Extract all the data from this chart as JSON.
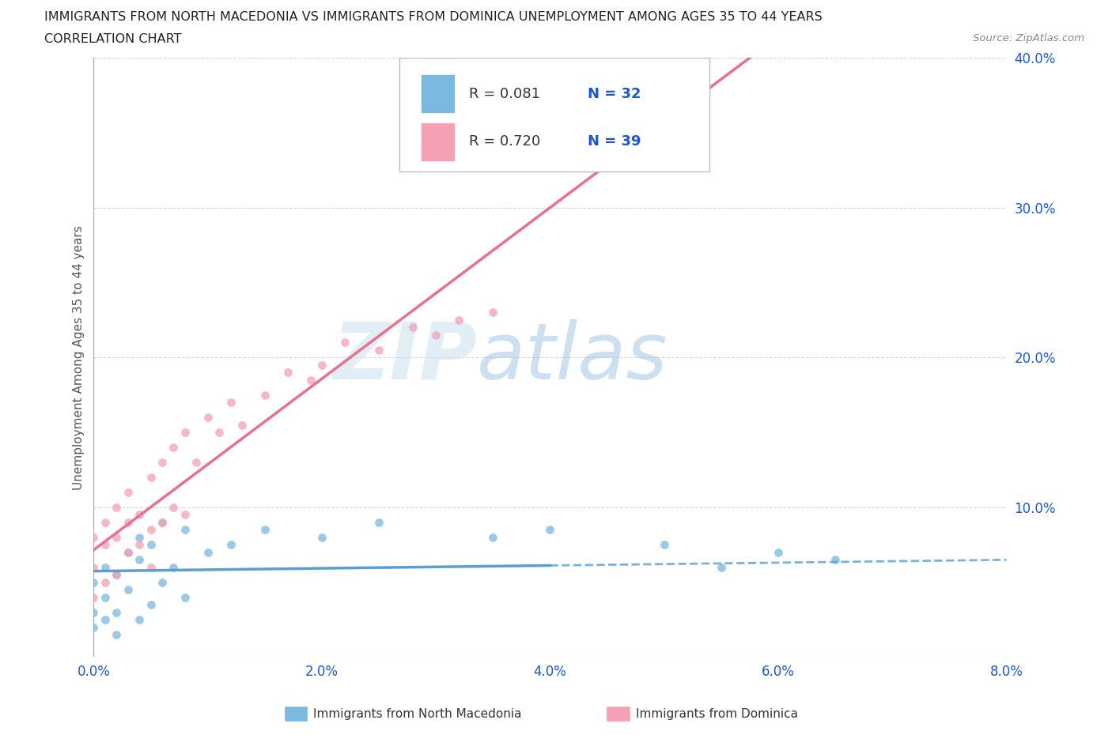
{
  "title_line1": "IMMIGRANTS FROM NORTH MACEDONIA VS IMMIGRANTS FROM DOMINICA UNEMPLOYMENT AMONG AGES 35 TO 44 YEARS",
  "title_line2": "CORRELATION CHART",
  "source_text": "Source: ZipAtlas.com",
  "ylabel": "Unemployment Among Ages 35 to 44 years",
  "watermark_zip": "ZIP",
  "watermark_atlas": "atlas",
  "legend_label1": "Immigrants from North Macedonia",
  "legend_label2": "Immigrants from Dominica",
  "R1": 0.081,
  "N1": 32,
  "R2": 0.72,
  "N2": 39,
  "color1": "#7ab9e0",
  "color2": "#f4a0b5",
  "trendline1_color": "#5a9fd4",
  "trendline2_color": "#e87090",
  "xlim": [
    0.0,
    0.08
  ],
  "ylim": [
    0.0,
    0.4
  ],
  "xticks": [
    0.0,
    0.02,
    0.04,
    0.06,
    0.08
  ],
  "yticks": [
    0.0,
    0.1,
    0.2,
    0.3,
    0.4
  ],
  "xticklabels": [
    "0.0%",
    "2.0%",
    "4.0%",
    "6.0%",
    "8.0%"
  ],
  "yticklabels": [
    "",
    "10.0%",
    "20.0%",
    "30.0%",
    "40.0%"
  ],
  "background_color": "#ffffff",
  "grid_color": "#cccccc",
  "title_color": "#222222",
  "axis_label_color": "#555555",
  "tick_color": "#1a56db",
  "legend_r_color": "#1a56db",
  "scatter1_x": [
    0.0,
    0.0,
    0.0,
    0.001,
    0.001,
    0.001,
    0.002,
    0.002,
    0.002,
    0.003,
    0.003,
    0.004,
    0.004,
    0.004,
    0.005,
    0.005,
    0.006,
    0.006,
    0.007,
    0.008,
    0.008,
    0.01,
    0.012,
    0.015,
    0.02,
    0.025,
    0.035,
    0.04,
    0.05,
    0.055,
    0.06,
    0.065
  ],
  "scatter1_y": [
    0.02,
    0.03,
    0.05,
    0.025,
    0.04,
    0.06,
    0.03,
    0.055,
    0.015,
    0.045,
    0.07,
    0.025,
    0.065,
    0.08,
    0.035,
    0.075,
    0.05,
    0.09,
    0.06,
    0.04,
    0.085,
    0.07,
    0.075,
    0.085,
    0.08,
    0.09,
    0.08,
    0.085,
    0.075,
    0.06,
    0.07,
    0.065
  ],
  "scatter2_x": [
    0.0,
    0.0,
    0.0,
    0.001,
    0.001,
    0.001,
    0.002,
    0.002,
    0.002,
    0.003,
    0.003,
    0.003,
    0.004,
    0.004,
    0.005,
    0.005,
    0.005,
    0.006,
    0.006,
    0.007,
    0.007,
    0.008,
    0.008,
    0.009,
    0.01,
    0.011,
    0.012,
    0.013,
    0.015,
    0.017,
    0.019,
    0.02,
    0.022,
    0.025,
    0.028,
    0.03,
    0.032,
    0.035,
    0.04
  ],
  "scatter2_y": [
    0.04,
    0.06,
    0.08,
    0.05,
    0.075,
    0.09,
    0.055,
    0.08,
    0.1,
    0.07,
    0.09,
    0.11,
    0.075,
    0.095,
    0.06,
    0.085,
    0.12,
    0.09,
    0.13,
    0.1,
    0.14,
    0.095,
    0.15,
    0.13,
    0.16,
    0.15,
    0.17,
    0.155,
    0.175,
    0.19,
    0.185,
    0.195,
    0.21,
    0.205,
    0.22,
    0.215,
    0.225,
    0.23,
    0.34
  ]
}
